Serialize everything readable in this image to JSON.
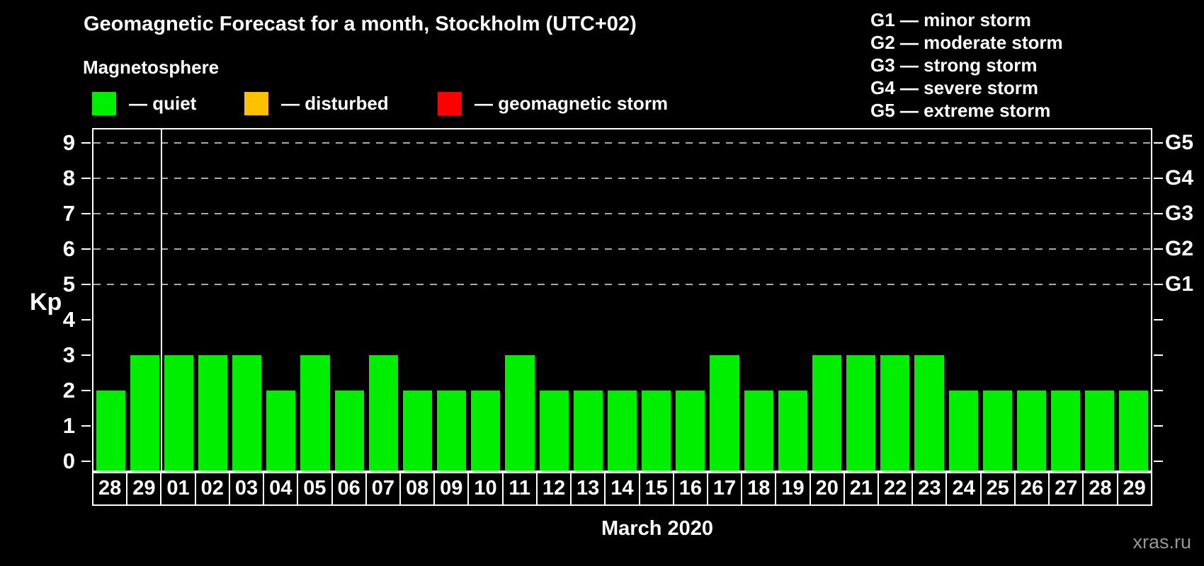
{
  "title": "Geomagnetic Forecast for a month, Stockholm (UTC+02)",
  "subtitle": "Magnetosphere",
  "legend": {
    "items": [
      {
        "label": "— quiet",
        "color": "#00ee00"
      },
      {
        "label": "— disturbed",
        "color": "#ffc000"
      },
      {
        "label": "— geomagnetic storm",
        "color": "#ff0000"
      }
    ]
  },
  "storm_scale_legend": [
    "G1 — minor storm",
    "G2 — moderate storm",
    "G3 — strong storm",
    "G4 — severe storm",
    "G5 — extreme storm"
  ],
  "watermark": "xras.ru",
  "chart_data": {
    "type": "bar",
    "title": "Geomagnetic Forecast for a month, Stockholm (UTC+02)",
    "xlabel": "March 2020",
    "ylabel": "Kp",
    "ylim": [
      0,
      9.4
    ],
    "grid": "dashed horizontal at Kp 5-9",
    "legend_position": "top",
    "categories": [
      "28",
      "29",
      "01",
      "02",
      "03",
      "04",
      "05",
      "06",
      "07",
      "08",
      "09",
      "10",
      "11",
      "12",
      "13",
      "14",
      "15",
      "16",
      "17",
      "18",
      "19",
      "20",
      "21",
      "22",
      "23",
      "24",
      "25",
      "26",
      "27",
      "28",
      "29"
    ],
    "values": [
      2,
      3,
      3,
      3,
      3,
      2,
      3,
      2,
      3,
      2,
      2,
      2,
      3,
      2,
      2,
      2,
      2,
      2,
      3,
      2,
      2,
      3,
      3,
      3,
      3,
      2,
      2,
      2,
      2,
      2,
      2
    ],
    "bar_color": "#00ee00",
    "yticks": [
      0,
      1,
      2,
      3,
      4,
      5,
      6,
      7,
      8,
      9
    ],
    "grid_levels": [
      5,
      6,
      7,
      8,
      9
    ],
    "right_axis_labels": [
      {
        "level": 5,
        "label": "G1"
      },
      {
        "level": 6,
        "label": "G2"
      },
      {
        "level": 7,
        "label": "G3"
      },
      {
        "level": 8,
        "label": "G4"
      },
      {
        "level": 9,
        "label": "G5"
      }
    ],
    "month_separator_after_index": 1
  }
}
